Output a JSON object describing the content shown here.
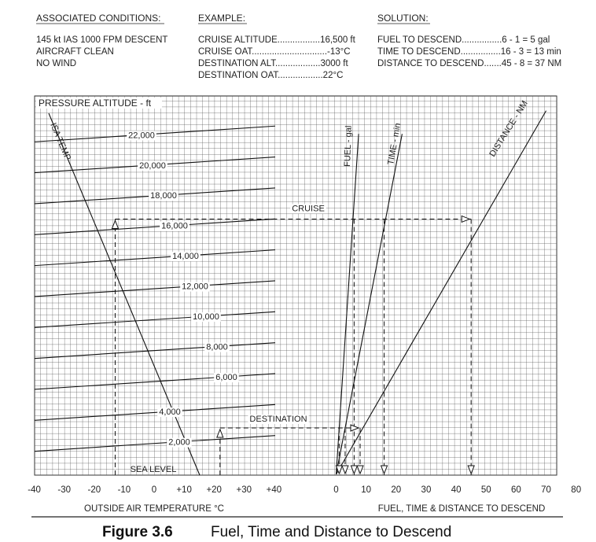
{
  "header": {
    "assoc_title": "ASSOCIATED CONDITIONS:",
    "assoc_lines": [
      "145 kt IAS  1000 FPM DESCENT",
      "AIRCRAFT CLEAN",
      "NO WIND"
    ],
    "example_title": "EXAMPLE:",
    "example_lines": [
      "CRUISE ALTITUDE.................16,500 ft",
      "CRUISE OAT..............................-13°C",
      "DESTINATION ALT..................3000 ft",
      "DESTINATION OAT..................22°C"
    ],
    "solution_title": "SOLUTION:",
    "solution_lines": [
      "FUEL TO DESCEND................6 - 1 = 5 gal",
      "TIME TO DESCEND................16 - 3 = 13 min",
      "DISTANCE TO DESCEND.......45 - 8 = 37 NM"
    ]
  },
  "caption": {
    "number": "Figure 3.6",
    "title": "Fuel, Time and Distance to Descend"
  },
  "chart_data": {
    "type": "line",
    "ylabel": "PRESSURE ALTITUDE - ft",
    "left_panel": {
      "xlabel": "OUTSIDE AIR TEMPERATURE °C",
      "x_ticks": [
        "-40",
        "-30",
        "-20",
        "-10",
        "0",
        "+10",
        "+20",
        "+30",
        "+40"
      ],
      "x_values": [
        -40,
        -30,
        -20,
        -10,
        0,
        10,
        20,
        30,
        40
      ],
      "altitude_labels": [
        "SEA LEVEL",
        "2,000",
        "4,000",
        "6,000",
        "8,000",
        "10,000",
        "12,000",
        "14,000",
        "16,000",
        "18,000",
        "20,000",
        "22,000"
      ],
      "altitude_values": [
        0,
        2000,
        4000,
        6000,
        8000,
        10000,
        12000,
        14000,
        16000,
        18000,
        20000,
        22000
      ],
      "isa_label": "ISA TEMP"
    },
    "right_panel": {
      "xlabel": "FUEL, TIME & DISTANCE TO DESCEND",
      "x_ticks": [
        "0",
        "10",
        "20",
        "30",
        "40",
        "50",
        "60",
        "70",
        "80"
      ],
      "x_values": [
        0,
        10,
        20,
        30,
        40,
        50,
        60,
        70,
        80
      ],
      "series": [
        {
          "name": "FUEL - gal",
          "points": [
            [
              0,
              0
            ],
            [
              7.5,
              22000
            ]
          ]
        },
        {
          "name": "TIME - min",
          "points": [
            [
              0,
              0
            ],
            [
              22,
              22000
            ]
          ]
        },
        {
          "name": "DISTANCE - NM",
          "points": [
            [
              0,
              0
            ],
            [
              70,
              23500
            ]
          ]
        }
      ]
    },
    "annotations": {
      "cruise": "CRUISE",
      "destination": "DESTINATION"
    },
    "example": {
      "cruise_oat": -13,
      "cruise_alt": 16500,
      "dest_oat": 22,
      "dest_alt": 3000,
      "fuel_read": [
        1,
        6
      ],
      "time_read": [
        3,
        16
      ],
      "distance_read": [
        8,
        45
      ]
    }
  }
}
